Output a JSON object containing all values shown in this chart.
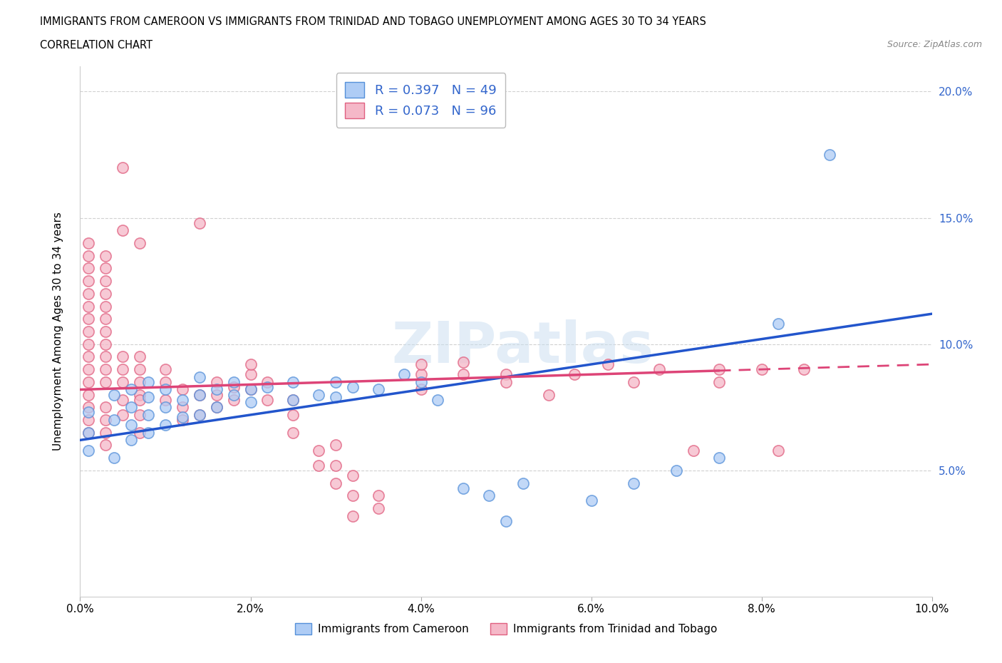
{
  "title_line1": "IMMIGRANTS FROM CAMEROON VS IMMIGRANTS FROM TRINIDAD AND TOBAGO UNEMPLOYMENT AMONG AGES 30 TO 34 YEARS",
  "title_line2": "CORRELATION CHART",
  "source_text": "Source: ZipAtlas.com",
  "ylabel": "Unemployment Among Ages 30 to 34 years",
  "xlim": [
    0.0,
    0.1
  ],
  "ylim": [
    0.0,
    0.21
  ],
  "xticks": [
    0.0,
    0.02,
    0.04,
    0.06,
    0.08,
    0.1
  ],
  "yticks": [
    0.05,
    0.1,
    0.15,
    0.2
  ],
  "xtick_labels": [
    "0.0%",
    "2.0%",
    "4.0%",
    "6.0%",
    "8.0%",
    "10.0%"
  ],
  "ytick_labels": [
    "5.0%",
    "10.0%",
    "15.0%",
    "20.0%"
  ],
  "cameroon_color": "#aeccf5",
  "trinidad_color": "#f5b8c8",
  "cameroon_edge_color": "#5590d9",
  "trinidad_edge_color": "#e06080",
  "cameroon_line_color": "#2255cc",
  "trinidad_line_color": "#dd4477",
  "R_cameroon": 0.397,
  "N_cameroon": 49,
  "R_trinidad": 0.073,
  "N_trinidad": 96,
  "legend_text_color": "#3366cc",
  "watermark_text": "ZIPatlas",
  "cam_trend_x0": 0.0,
  "cam_trend_y0": 0.062,
  "cam_trend_x1": 0.1,
  "cam_trend_y1": 0.112,
  "tri_trend_x0": 0.0,
  "tri_trend_y0": 0.082,
  "tri_trend_x1": 0.1,
  "tri_trend_y1": 0.092,
  "cameroon_scatter": [
    [
      0.001,
      0.065
    ],
    [
      0.001,
      0.073
    ],
    [
      0.001,
      0.058
    ],
    [
      0.004,
      0.07
    ],
    [
      0.004,
      0.08
    ],
    [
      0.004,
      0.055
    ],
    [
      0.006,
      0.068
    ],
    [
      0.006,
      0.075
    ],
    [
      0.006,
      0.082
    ],
    [
      0.006,
      0.062
    ],
    [
      0.008,
      0.072
    ],
    [
      0.008,
      0.079
    ],
    [
      0.008,
      0.065
    ],
    [
      0.008,
      0.085
    ],
    [
      0.01,
      0.075
    ],
    [
      0.01,
      0.068
    ],
    [
      0.01,
      0.082
    ],
    [
      0.012,
      0.078
    ],
    [
      0.012,
      0.071
    ],
    [
      0.014,
      0.08
    ],
    [
      0.014,
      0.072
    ],
    [
      0.014,
      0.087
    ],
    [
      0.016,
      0.075
    ],
    [
      0.016,
      0.082
    ],
    [
      0.018,
      0.08
    ],
    [
      0.018,
      0.085
    ],
    [
      0.02,
      0.082
    ],
    [
      0.02,
      0.077
    ],
    [
      0.022,
      0.083
    ],
    [
      0.025,
      0.085
    ],
    [
      0.025,
      0.078
    ],
    [
      0.028,
      0.08
    ],
    [
      0.03,
      0.079
    ],
    [
      0.03,
      0.085
    ],
    [
      0.032,
      0.083
    ],
    [
      0.035,
      0.082
    ],
    [
      0.038,
      0.088
    ],
    [
      0.04,
      0.085
    ],
    [
      0.042,
      0.078
    ],
    [
      0.045,
      0.043
    ],
    [
      0.048,
      0.04
    ],
    [
      0.05,
      0.03
    ],
    [
      0.052,
      0.045
    ],
    [
      0.06,
      0.038
    ],
    [
      0.065,
      0.045
    ],
    [
      0.07,
      0.05
    ],
    [
      0.075,
      0.055
    ],
    [
      0.082,
      0.108
    ],
    [
      0.088,
      0.175
    ]
  ],
  "trinidad_scatter": [
    [
      0.001,
      0.085
    ],
    [
      0.001,
      0.09
    ],
    [
      0.001,
      0.095
    ],
    [
      0.001,
      0.1
    ],
    [
      0.001,
      0.105
    ],
    [
      0.001,
      0.11
    ],
    [
      0.001,
      0.115
    ],
    [
      0.001,
      0.12
    ],
    [
      0.001,
      0.125
    ],
    [
      0.001,
      0.13
    ],
    [
      0.001,
      0.135
    ],
    [
      0.001,
      0.14
    ],
    [
      0.001,
      0.08
    ],
    [
      0.001,
      0.075
    ],
    [
      0.001,
      0.07
    ],
    [
      0.001,
      0.065
    ],
    [
      0.003,
      0.085
    ],
    [
      0.003,
      0.09
    ],
    [
      0.003,
      0.095
    ],
    [
      0.003,
      0.1
    ],
    [
      0.003,
      0.105
    ],
    [
      0.003,
      0.11
    ],
    [
      0.003,
      0.115
    ],
    [
      0.003,
      0.12
    ],
    [
      0.003,
      0.125
    ],
    [
      0.003,
      0.13
    ],
    [
      0.003,
      0.135
    ],
    [
      0.003,
      0.075
    ],
    [
      0.003,
      0.07
    ],
    [
      0.003,
      0.065
    ],
    [
      0.003,
      0.06
    ],
    [
      0.005,
      0.17
    ],
    [
      0.005,
      0.145
    ],
    [
      0.005,
      0.085
    ],
    [
      0.005,
      0.09
    ],
    [
      0.005,
      0.095
    ],
    [
      0.005,
      0.078
    ],
    [
      0.005,
      0.072
    ],
    [
      0.007,
      0.14
    ],
    [
      0.007,
      0.085
    ],
    [
      0.007,
      0.09
    ],
    [
      0.007,
      0.08
    ],
    [
      0.007,
      0.095
    ],
    [
      0.007,
      0.078
    ],
    [
      0.007,
      0.072
    ],
    [
      0.007,
      0.065
    ],
    [
      0.01,
      0.085
    ],
    [
      0.01,
      0.09
    ],
    [
      0.01,
      0.078
    ],
    [
      0.012,
      0.082
    ],
    [
      0.012,
      0.075
    ],
    [
      0.012,
      0.07
    ],
    [
      0.014,
      0.148
    ],
    [
      0.014,
      0.08
    ],
    [
      0.014,
      0.072
    ],
    [
      0.016,
      0.08
    ],
    [
      0.016,
      0.085
    ],
    [
      0.016,
      0.075
    ],
    [
      0.018,
      0.078
    ],
    [
      0.018,
      0.083
    ],
    [
      0.02,
      0.082
    ],
    [
      0.02,
      0.088
    ],
    [
      0.02,
      0.092
    ],
    [
      0.022,
      0.085
    ],
    [
      0.022,
      0.078
    ],
    [
      0.025,
      0.078
    ],
    [
      0.025,
      0.072
    ],
    [
      0.025,
      0.065
    ],
    [
      0.028,
      0.058
    ],
    [
      0.028,
      0.052
    ],
    [
      0.03,
      0.06
    ],
    [
      0.03,
      0.052
    ],
    [
      0.03,
      0.045
    ],
    [
      0.032,
      0.048
    ],
    [
      0.032,
      0.04
    ],
    [
      0.032,
      0.032
    ],
    [
      0.035,
      0.04
    ],
    [
      0.035,
      0.035
    ],
    [
      0.04,
      0.082
    ],
    [
      0.04,
      0.088
    ],
    [
      0.04,
      0.092
    ],
    [
      0.045,
      0.088
    ],
    [
      0.045,
      0.093
    ],
    [
      0.05,
      0.088
    ],
    [
      0.05,
      0.085
    ],
    [
      0.055,
      0.08
    ],
    [
      0.058,
      0.088
    ],
    [
      0.062,
      0.092
    ],
    [
      0.065,
      0.085
    ],
    [
      0.068,
      0.09
    ],
    [
      0.072,
      0.058
    ],
    [
      0.075,
      0.085
    ],
    [
      0.075,
      0.09
    ],
    [
      0.08,
      0.09
    ],
    [
      0.082,
      0.058
    ],
    [
      0.085,
      0.09
    ]
  ]
}
